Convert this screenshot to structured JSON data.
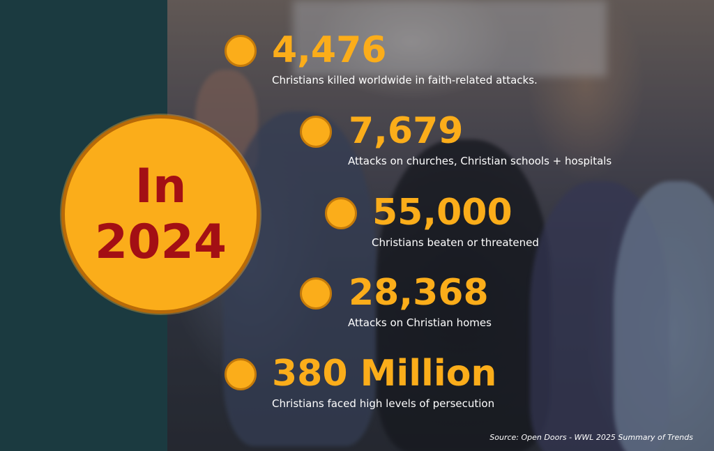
{
  "headline": {
    "line1": "In",
    "line2": "2024"
  },
  "stats": [
    {
      "value": "4,476",
      "label": "Christians killed worldwide in faith-related attacks."
    },
    {
      "value": "7,679",
      "label": "Attacks on churches, Christian schools + hospitals"
    },
    {
      "value": "55,000",
      "label": "Christians beaten or threatened"
    },
    {
      "value": "28,368",
      "label": "Attacks on Christian homes"
    },
    {
      "value": "380 Million",
      "label": "Christians faced high levels of persecution"
    }
  ],
  "source": "Source: Open Doors - WWL 2025 Summary of Trends",
  "colors": {
    "accent": "#fbad1a",
    "headline_text": "#a30f14",
    "sidebar": "#1b3a40"
  }
}
